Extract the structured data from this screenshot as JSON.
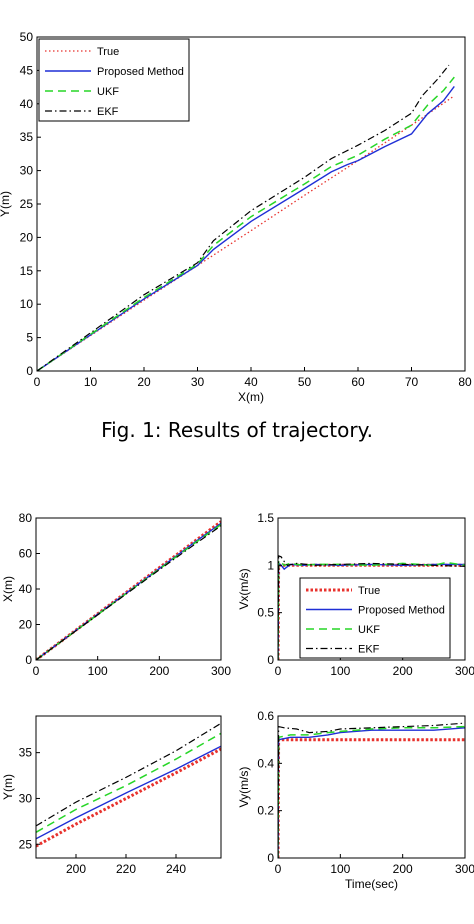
{
  "caption": "Fig. 1: Results of trajectory.",
  "styles": {
    "True": {
      "color": "#e8322d",
      "dash": "1.5,2.5",
      "width": 1.3
    },
    "Proposed Method": {
      "color": "#1f2fd6",
      "dash": "",
      "width": 1.4
    },
    "UKF": {
      "color": "#27d627",
      "dash": "8,5",
      "width": 1.5
    },
    "EKF": {
      "color": "#000000",
      "dash": "7,3,1.5,3",
      "width": 1.2
    }
  },
  "chart_data": [
    {
      "id": "traj",
      "type": "line",
      "xlabel": "X(m)",
      "ylabel": "Y(m)",
      "xlim": [
        0,
        80
      ],
      "ylim": [
        0,
        50
      ],
      "xticks": [
        0,
        10,
        20,
        30,
        40,
        50,
        60,
        70,
        80
      ],
      "yticks": [
        0,
        5,
        10,
        15,
        20,
        25,
        30,
        35,
        40,
        45,
        50
      ],
      "legend": "top-left",
      "legend_entries": [
        "True",
        "Proposed Method",
        "UKF",
        "EKF"
      ],
      "series": [
        {
          "name": "True",
          "x": [
            0,
            10,
            20,
            30,
            40,
            50,
            60,
            70,
            78
          ],
          "y": [
            0,
            5.3,
            10.6,
            15.8,
            21.0,
            26.3,
            31.5,
            36.8,
            41.2
          ]
        },
        {
          "name": "Proposed Method",
          "x": [
            0,
            10,
            20,
            30,
            33,
            40,
            50,
            55,
            58,
            60,
            65,
            70,
            73,
            76,
            78
          ],
          "y": [
            0,
            5.4,
            10.8,
            15.8,
            18.2,
            22.4,
            27.3,
            29.8,
            30.9,
            31.5,
            33.6,
            35.5,
            38.5,
            40.5,
            42.6
          ]
        },
        {
          "name": "UKF",
          "x": [
            0,
            10,
            20,
            30,
            33,
            40,
            50,
            55,
            60,
            65,
            70,
            73,
            76,
            78
          ],
          "y": [
            0,
            5.5,
            11.0,
            16.0,
            18.8,
            23.1,
            28.0,
            30.6,
            32.3,
            34.7,
            36.8,
            39.8,
            42.0,
            44.0
          ]
        },
        {
          "name": "EKF",
          "x": [
            0,
            10,
            20,
            30,
            33,
            40,
            50,
            55,
            60,
            65,
            70,
            72,
            75,
            77
          ],
          "y": [
            0,
            5.7,
            11.4,
            16.2,
            19.5,
            24.0,
            29.0,
            31.8,
            33.8,
            36.0,
            38.6,
            41.2,
            43.8,
            45.8
          ]
        }
      ]
    },
    {
      "id": "xt",
      "type": "line",
      "xlabel": "",
      "ylabel": "X(m)",
      "xlim": [
        0,
        300
      ],
      "ylim": [
        0,
        80
      ],
      "xticks": [
        0,
        100,
        200,
        300
      ],
      "yticks": [
        0,
        20,
        40,
        60,
        80
      ],
      "series": [
        {
          "name": "True",
          "x": [
            0,
            100,
            200,
            300
          ],
          "y": [
            0,
            26.0,
            52.0,
            78.0
          ]
        },
        {
          "name": "Proposed Method",
          "x": [
            0,
            100,
            200,
            260,
            300
          ],
          "y": [
            0,
            25.8,
            51.5,
            67.0,
            77.0
          ]
        },
        {
          "name": "UKF",
          "x": [
            0,
            100,
            200,
            260,
            300
          ],
          "y": [
            0,
            25.6,
            51.2,
            66.5,
            76.3
          ]
        },
        {
          "name": "EKF",
          "x": [
            0,
            100,
            200,
            260,
            300
          ],
          "y": [
            0,
            25.4,
            50.8,
            65.8,
            75.6
          ]
        }
      ]
    },
    {
      "id": "vx",
      "type": "line",
      "xlabel": "",
      "ylabel": "Vx(m/s)",
      "xlim": [
        0,
        300
      ],
      "ylim": [
        0,
        1.5
      ],
      "xticks": [
        0,
        100,
        200,
        300
      ],
      "yticks": [
        0,
        0.5,
        1,
        1.5
      ],
      "legend": "center",
      "legend_entries": [
        "True",
        "Proposed Method",
        "UKF",
        "EKF"
      ],
      "series": [
        {
          "name": "True",
          "x": [
            0,
            1,
            10,
            50,
            100,
            200,
            300
          ],
          "y": [
            0,
            1,
            1,
            1,
            1,
            1,
            1
          ]
        },
        {
          "name": "Proposed Method",
          "x": [
            0,
            1,
            5,
            10,
            14,
            20,
            40,
            60,
            100,
            150,
            200,
            250,
            300
          ],
          "y": [
            0,
            1.02,
            1.0,
            0.96,
            0.98,
            1.01,
            1.0,
            1.01,
            1.0,
            1.01,
            1.0,
            1.01,
            1.01
          ]
        },
        {
          "name": "UKF",
          "x": [
            0,
            1,
            5,
            10,
            20,
            40,
            60,
            100,
            150,
            200,
            250,
            270,
            300
          ],
          "y": [
            0,
            1.05,
            1.03,
            1.0,
            1.02,
            1.0,
            1.01,
            1.01,
            1.0,
            1.02,
            1.0,
            1.03,
            1.0
          ]
        },
        {
          "name": "EKF",
          "x": [
            0,
            1,
            5,
            10,
            15,
            30,
            60,
            100,
            150,
            200,
            250,
            300
          ],
          "y": [
            0,
            1.1,
            1.09,
            1.04,
            1.0,
            1.02,
            1.0,
            1.01,
            1.02,
            1.01,
            1.0,
            0.99
          ]
        }
      ]
    },
    {
      "id": "yt",
      "type": "line",
      "xlabel": "",
      "ylabel": "Y(m)",
      "xlim": [
        184,
        258
      ],
      "ylim": [
        23.5,
        39
      ],
      "xticks": [
        200,
        220,
        240
      ],
      "yticks": [
        25,
        30,
        35
      ],
      "series": [
        {
          "name": "True",
          "x": [
            184,
            200,
            220,
            240,
            258
          ],
          "y": [
            24.8,
            27.2,
            30.0,
            32.8,
            35.4
          ]
        },
        {
          "name": "Proposed Method",
          "x": [
            184,
            200,
            220,
            240,
            258
          ],
          "y": [
            25.6,
            27.9,
            30.6,
            33.2,
            35.7
          ]
        },
        {
          "name": "UKF",
          "x": [
            184,
            200,
            220,
            240,
            258
          ],
          "y": [
            26.3,
            28.8,
            31.4,
            34.3,
            37.1
          ]
        },
        {
          "name": "EKF",
          "x": [
            184,
            200,
            220,
            240,
            258
          ],
          "y": [
            27.0,
            29.6,
            32.3,
            35.2,
            38.2
          ]
        }
      ]
    },
    {
      "id": "vy",
      "type": "line",
      "xlabel": "Time(sec)",
      "ylabel": "Vy(m/s)",
      "xlim": [
        0,
        300
      ],
      "ylim": [
        0,
        0.6
      ],
      "xticks": [
        0,
        100,
        200,
        300
      ],
      "yticks": [
        0,
        0.2,
        0.4,
        0.6
      ],
      "series": [
        {
          "name": "True",
          "x": [
            0,
            1,
            10,
            300
          ],
          "y": [
            0,
            0.5,
            0.5,
            0.5
          ]
        },
        {
          "name": "Proposed Method",
          "x": [
            0,
            1,
            20,
            50,
            80,
            100,
            150,
            200,
            250,
            300
          ],
          "y": [
            0,
            0.5,
            0.51,
            0.51,
            0.52,
            0.53,
            0.54,
            0.54,
            0.54,
            0.55
          ]
        },
        {
          "name": "UKF",
          "x": [
            0,
            1,
            20,
            50,
            80,
            100,
            150,
            200,
            250,
            300
          ],
          "y": [
            0,
            0.51,
            0.52,
            0.52,
            0.53,
            0.535,
            0.545,
            0.55,
            0.55,
            0.555
          ]
        },
        {
          "name": "EKF",
          "x": [
            0,
            1,
            10,
            30,
            50,
            80,
            100,
            150,
            200,
            250,
            300
          ],
          "y": [
            0,
            0.555,
            0.55,
            0.545,
            0.53,
            0.535,
            0.545,
            0.55,
            0.555,
            0.56,
            0.57
          ]
        }
      ]
    }
  ]
}
